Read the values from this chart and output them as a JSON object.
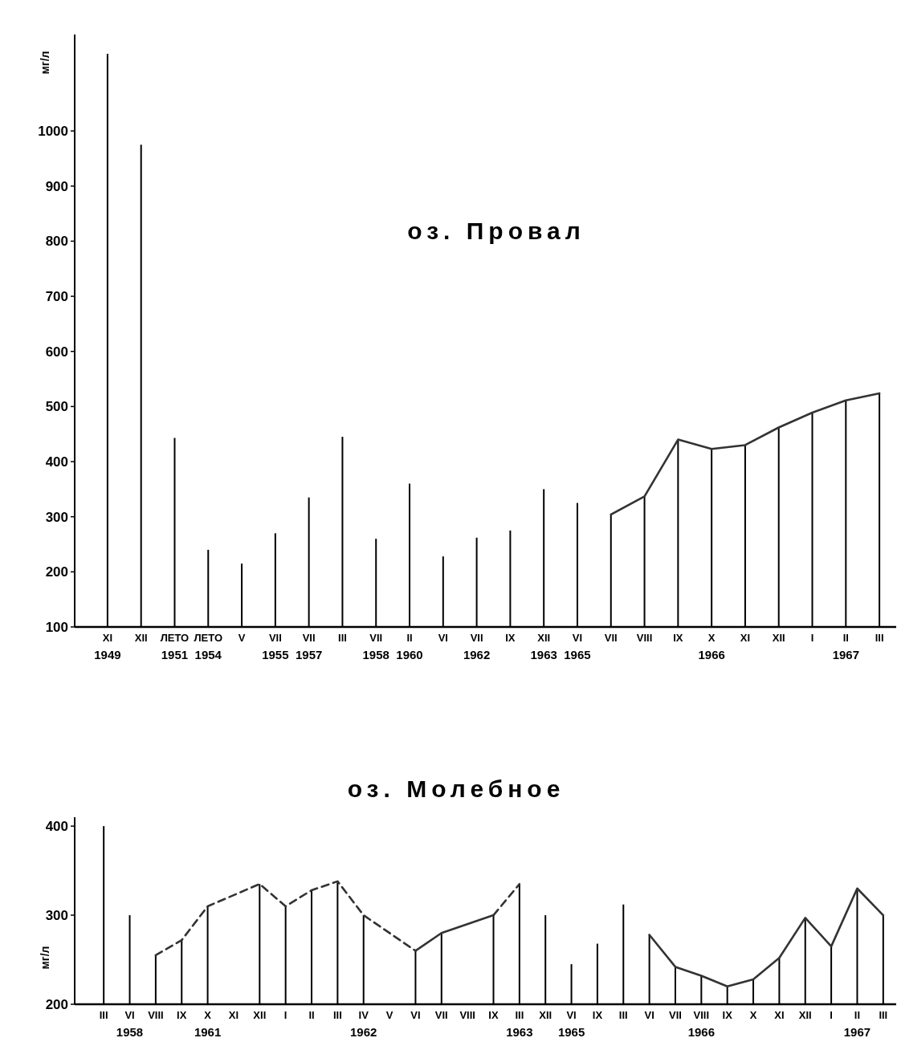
{
  "chart_data": [
    {
      "type": "bar",
      "title": "оз. Провал",
      "ylabel": "мг/л",
      "categories": [
        "XI\n1949",
        "XII",
        "ЛЕТО\n1951",
        "ЛЕТО\n1954",
        "V",
        "VII\n1955",
        "VII\n1957",
        "III",
        "VII\n1958",
        "II\n1960",
        "VI",
        "VII\n1962",
        "IX",
        "XII\n1963",
        "VI\n1965",
        "VII",
        "VIII",
        "IX",
        "X\n1966",
        "XI",
        "XII",
        "I",
        "II\n1967",
        "III"
      ],
      "series": [
        {
          "color": "#000000",
          "values": [
            1140,
            975,
            443,
            240,
            215,
            270,
            335,
            445,
            260,
            360,
            228,
            262,
            275,
            350,
            325,
            304,
            337,
            440,
            423,
            430,
            462,
            489,
            511,
            524
          ]
        },
        {
          "type": "line",
          "color": "#333333",
          "line_style": "solid",
          "values": [
            null,
            null,
            null,
            null,
            null,
            null,
            null,
            null,
            null,
            null,
            null,
            null,
            null,
            null,
            null,
            304,
            337,
            440,
            423,
            430,
            462,
            489,
            511,
            524
          ]
        }
      ],
      "ylim": [
        100,
        1175
      ],
      "yticks": [
        100,
        200,
        300,
        400,
        500,
        600,
        700,
        800,
        900,
        1000
      ]
    },
    {
      "type": "bar",
      "title": "оз. Молебное",
      "ylabel": "мг/л",
      "categories": [
        "III",
        "VI\n1958",
        "VIII",
        "IX",
        "X\n1961",
        "XI",
        "XII",
        "I",
        "II",
        "III",
        "IV\n1962",
        "V",
        "VI",
        "VII",
        "VIII",
        "IX",
        "III\n1963",
        "XII",
        "VI\n1965",
        "IX",
        "III",
        "VI",
        "VII",
        "VIII\n1966",
        "IX",
        "X",
        "XI",
        "XII",
        "I",
        "II\n1967",
        "III"
      ],
      "series": [
        {
          "color": "#000000",
          "values": [
            400,
            300,
            255,
            272,
            310,
            null,
            335,
            310,
            328,
            338,
            300,
            null,
            260,
            280,
            null,
            300,
            335,
            300,
            245,
            268,
            312,
            278,
            242,
            232,
            220,
            228,
            252,
            297,
            265,
            330,
            300
          ]
        },
        {
          "type": "line",
          "color": "#333333",
          "line_style": "dashed",
          "values": [
            null,
            null,
            255,
            272,
            310,
            null,
            335,
            310,
            328,
            338,
            300,
            null,
            260,
            null,
            null,
            null,
            null,
            null,
            null,
            null,
            null,
            null,
            null,
            null,
            null,
            null,
            null,
            null,
            null,
            null,
            null
          ]
        },
        {
          "type": "line",
          "color": "#333333",
          "line_style": "solid",
          "values": [
            null,
            null,
            null,
            null,
            null,
            null,
            null,
            null,
            null,
            null,
            null,
            null,
            260,
            280,
            null,
            300,
            null,
            null,
            null,
            null,
            null,
            null,
            null,
            null,
            null,
            null,
            null,
            null,
            null,
            null,
            null
          ]
        },
        {
          "type": "line",
          "color": "#333333",
          "line_style": "dashed",
          "values": [
            null,
            null,
            null,
            null,
            null,
            null,
            null,
            null,
            null,
            null,
            null,
            null,
            null,
            null,
            null,
            300,
            335,
            null,
            null,
            null,
            null,
            null,
            null,
            null,
            null,
            null,
            null,
            null,
            null,
            null,
            null
          ]
        },
        {
          "type": "line",
          "color": "#333333",
          "line_style": "solid",
          "values": [
            null,
            null,
            null,
            null,
            null,
            null,
            null,
            null,
            null,
            null,
            null,
            null,
            null,
            null,
            null,
            null,
            null,
            null,
            null,
            null,
            null,
            278,
            242,
            232,
            220,
            228,
            252,
            297,
            265,
            330,
            300
          ]
        }
      ],
      "ylim": [
        200,
        410
      ],
      "yticks": [
        200,
        300,
        400
      ]
    }
  ]
}
